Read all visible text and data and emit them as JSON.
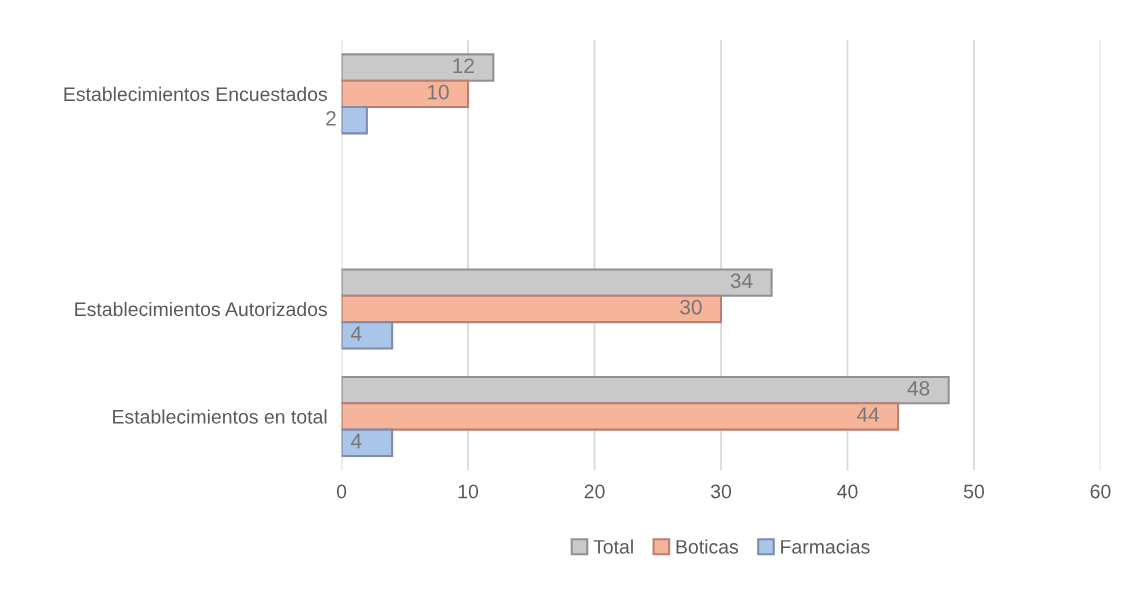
{
  "chart_data": {
    "type": "bar",
    "orientation": "horizontal",
    "categories": [
      "Establecimientos Encuestados",
      null,
      "Establecimientos Autorizados",
      "Establecimientos en total"
    ],
    "series": [
      {
        "name": "Total",
        "color": "#c9c9c9",
        "values": [
          12,
          null,
          34,
          48
        ]
      },
      {
        "name": "Boticas",
        "color": "#f6b59a",
        "values": [
          10,
          null,
          30,
          44
        ]
      },
      {
        "name": "Farmacias",
        "color": "#a9c5e8",
        "values": [
          2,
          null,
          4,
          4
        ]
      }
    ],
    "xlim": [
      0,
      60
    ],
    "xticks": [
      0,
      10,
      20,
      30,
      40,
      50,
      60
    ],
    "grid": "x",
    "legend": "bottom",
    "data_labels": true
  }
}
